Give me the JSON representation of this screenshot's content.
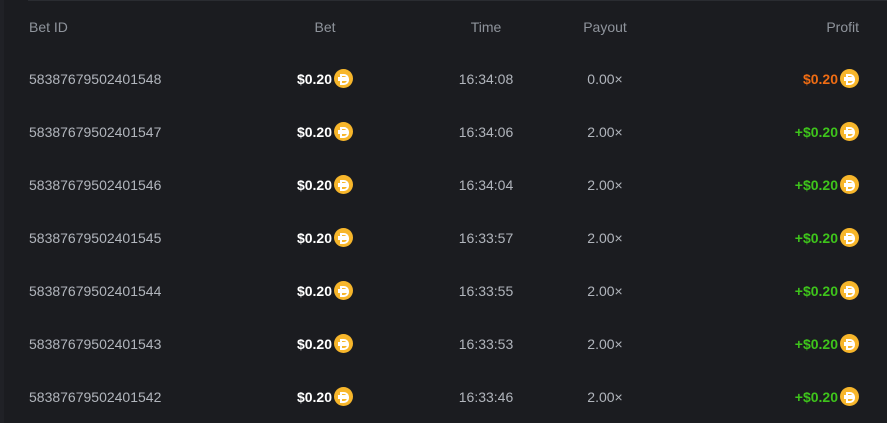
{
  "colors": {
    "loss": "#ef6c13",
    "win": "#3ec41b",
    "coin": "#f7b62b"
  },
  "coin_icon": "dai-coin-icon",
  "headers": {
    "bet_id": "Bet ID",
    "bet": "Bet",
    "time": "Time",
    "payout": "Payout",
    "profit": "Profit"
  },
  "rows": [
    {
      "bet_id": "58387679502401548",
      "bet": "$0.20",
      "time": "16:34:08",
      "payout": "0.00×",
      "profit": "$0.20",
      "result": "loss"
    },
    {
      "bet_id": "58387679502401547",
      "bet": "$0.20",
      "time": "16:34:06",
      "payout": "2.00×",
      "profit": "+$0.20",
      "result": "win"
    },
    {
      "bet_id": "58387679502401546",
      "bet": "$0.20",
      "time": "16:34:04",
      "payout": "2.00×",
      "profit": "+$0.20",
      "result": "win"
    },
    {
      "bet_id": "58387679502401545",
      "bet": "$0.20",
      "time": "16:33:57",
      "payout": "2.00×",
      "profit": "+$0.20",
      "result": "win"
    },
    {
      "bet_id": "58387679502401544",
      "bet": "$0.20",
      "time": "16:33:55",
      "payout": "2.00×",
      "profit": "+$0.20",
      "result": "win"
    },
    {
      "bet_id": "58387679502401543",
      "bet": "$0.20",
      "time": "16:33:53",
      "payout": "2.00×",
      "profit": "+$0.20",
      "result": "win"
    },
    {
      "bet_id": "58387679502401542",
      "bet": "$0.20",
      "time": "16:33:46",
      "payout": "2.00×",
      "profit": "+$0.20",
      "result": "win"
    }
  ]
}
